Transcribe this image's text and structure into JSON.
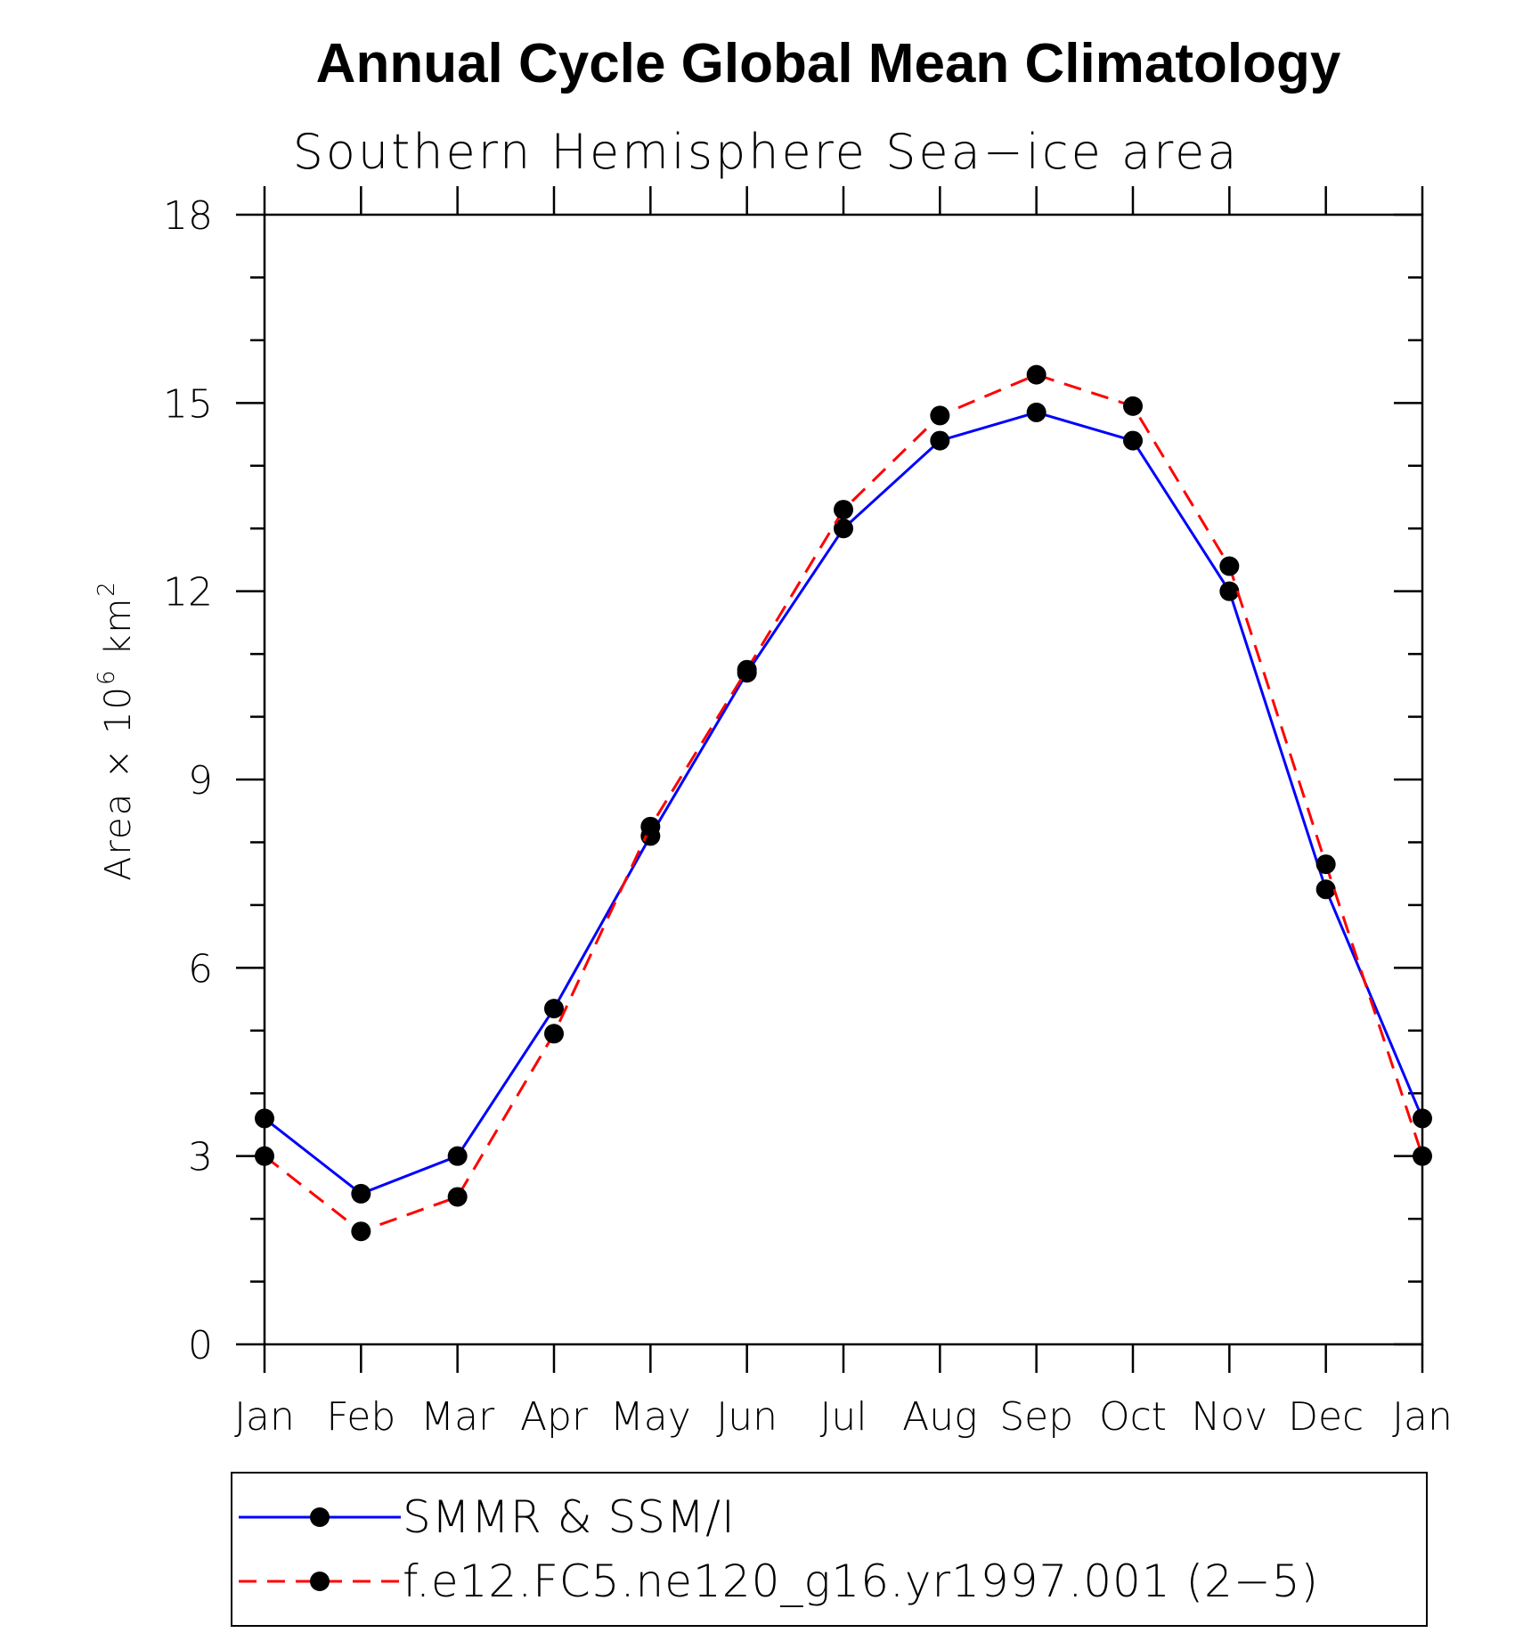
{
  "chart_data": {
    "type": "line",
    "title": "Annual Cycle Global Mean Climatology",
    "subtitle": "Southern Hemisphere Sea−ice area",
    "ylabel": {
      "prefix": "Area × 10",
      "exp1": "6",
      "unit": " km",
      "exp2": "2"
    },
    "categories": [
      "Jan",
      "Feb",
      "Mar",
      "Apr",
      "May",
      "Jun",
      "Jul",
      "Aug",
      "Sep",
      "Oct",
      "Nov",
      "Dec",
      "Jan"
    ],
    "ylim": [
      0,
      18
    ],
    "yticks": [
      "0",
      "3",
      "6",
      "9",
      "12",
      "15",
      "18"
    ],
    "series": [
      {
        "name": "SMMR & SSM/I",
        "color": "#0000ff",
        "style": "solid",
        "values": [
          3.6,
          2.4,
          3.0,
          5.35,
          8.1,
          10.7,
          13.0,
          14.4,
          14.85,
          14.4,
          12.0,
          7.25,
          3.6
        ]
      },
      {
        "name": "f.e12.FC5.ne120_g16.yr1997.001 (2−5)",
        "color": "#ff0000",
        "style": "dashed",
        "values": [
          3.0,
          1.8,
          2.35,
          4.95,
          8.25,
          10.75,
          13.3,
          14.8,
          15.45,
          14.95,
          12.4,
          7.65,
          3.0
        ]
      }
    ],
    "grid": false,
    "legend_position": "bottom"
  }
}
